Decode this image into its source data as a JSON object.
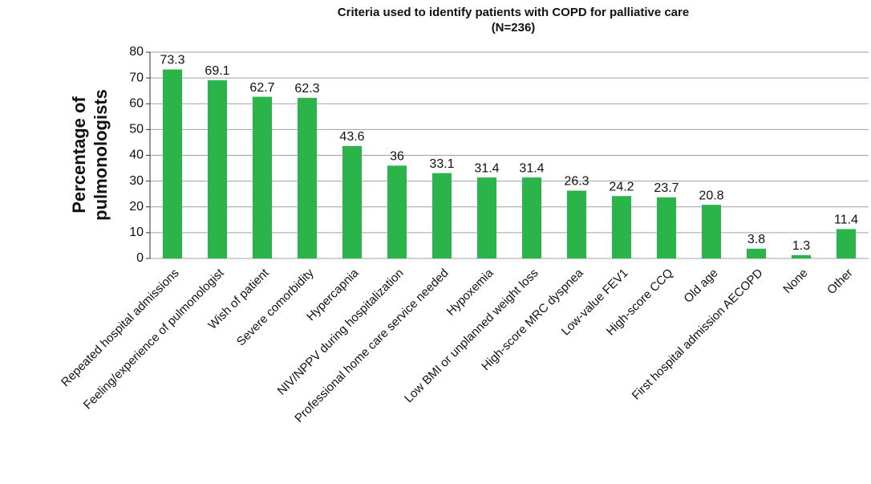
{
  "chart_data": {
    "type": "bar",
    "title": "Criteria used to identify patients with COPD for palliative care",
    "subtitle": "(N=236)",
    "ylabel": [
      "Percentage of",
      "pulmonologists"
    ],
    "categories": [
      "Repeated hospital admissions",
      "Feeling/experience of pulmonologist",
      "Wish of patient",
      "Severe comorbidity",
      "Hypercapnia",
      "NIV/NPPV during hospitalization",
      "Professional home care service needed",
      "Hypoxemia",
      "Low BMI or unplanned weight loss",
      "High-score MRC dyspnea",
      "Low-value FEV1",
      "High-score CCQ",
      "Old age",
      "First hospital admission AECOPD",
      "None",
      "Other"
    ],
    "values": [
      73.3,
      69.1,
      62.7,
      62.3,
      43.6,
      36,
      33.1,
      31.4,
      31.4,
      26.3,
      24.2,
      23.7,
      20.8,
      3.8,
      1.3,
      11.4
    ],
    "color": "#2bb44a",
    "ylim": [
      0,
      80
    ],
    "yticks": [
      0,
      10,
      20,
      30,
      40,
      50,
      60,
      70,
      80
    ],
    "grid": true
  }
}
